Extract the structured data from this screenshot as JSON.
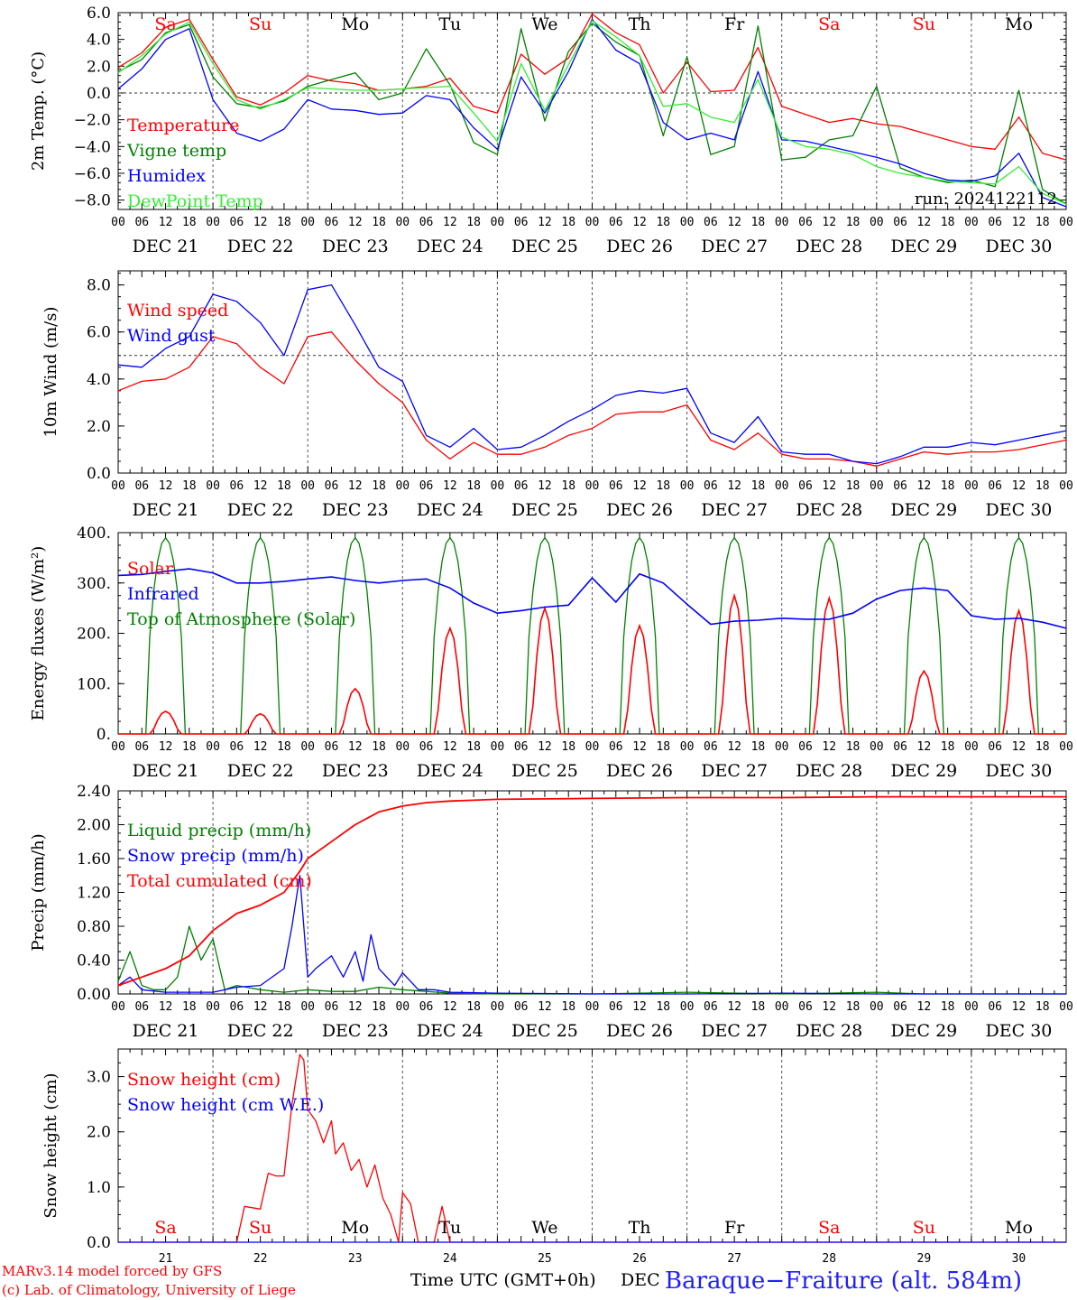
{
  "chart_data": [
    {
      "type": "line",
      "ylabel": "2m Temp. (°C)",
      "ylim": [
        -8.7,
        6.0
      ],
      "yticks": [
        "6.0",
        "4.0",
        "2.0",
        "0.0",
        "−2.0",
        "−4.0",
        "−6.0",
        "−8.0"
      ],
      "ytick_values": [
        6,
        4,
        2,
        0,
        -2,
        -4,
        -6,
        -8
      ],
      "x_unit": "hours since DEC 21 00 UTC",
      "xlim": [
        0,
        240
      ],
      "run_label": "run: 2024122112",
      "dashed_reference_y": 0,
      "legend": "upper left",
      "series": [
        {
          "name": "Temperature",
          "color": "#ff0000",
          "x": [
            0,
            6,
            12,
            18,
            24,
            30,
            36,
            42,
            48,
            54,
            60,
            66,
            72,
            78,
            84,
            90,
            96,
            102,
            108,
            114,
            120,
            126,
            132,
            138,
            144,
            150,
            156,
            162,
            168,
            174,
            180,
            186,
            192,
            198,
            204,
            210,
            216,
            222,
            228,
            234,
            240
          ],
          "y": [
            1.9,
            3.0,
            4.9,
            5.5,
            2.5,
            -0.3,
            -0.9,
            0.0,
            1.3,
            0.9,
            0.7,
            0.2,
            0.3,
            0.5,
            1.1,
            -1.0,
            -1.5,
            2.9,
            1.4,
            2.6,
            5.9,
            4.5,
            3.6,
            0.0,
            2.3,
            0.1,
            0.2,
            3.4,
            -1.0,
            -1.6,
            -2.2,
            -1.9,
            -2.3,
            -2.5,
            -3.0,
            -3.5,
            -4.0,
            -4.2,
            -1.8,
            -4.5,
            -5.0
          ]
        },
        {
          "name": "Vigne temp",
          "color": "#008000",
          "x": [
            0,
            6,
            12,
            18,
            24,
            30,
            36,
            42,
            48,
            54,
            60,
            66,
            72,
            78,
            84,
            90,
            96,
            102,
            108,
            114,
            120,
            126,
            132,
            138,
            144,
            150,
            156,
            162,
            168,
            174,
            180,
            186,
            192,
            198,
            204,
            210,
            216,
            222,
            228,
            234,
            240
          ],
          "y": [
            1.6,
            2.5,
            4.5,
            5.1,
            1.2,
            -0.8,
            -1.1,
            -0.6,
            0.5,
            1.0,
            1.5,
            -0.5,
            0.0,
            3.3,
            0.6,
            -3.7,
            -4.6,
            4.8,
            -2.1,
            3.1,
            5.2,
            3.8,
            2.8,
            -3.2,
            2.7,
            -4.6,
            -4.0,
            5.0,
            -5.0,
            -4.8,
            -3.5,
            -3.2,
            0.5,
            -5.6,
            -6.3,
            -6.7,
            -6.5,
            -7.0,
            0.2,
            -7.2,
            -8.3
          ]
        },
        {
          "name": "Humidex",
          "color": "#0000ff",
          "x": [
            0,
            6,
            12,
            18,
            24,
            30,
            36,
            42,
            48,
            54,
            60,
            66,
            72,
            78,
            84,
            90,
            96,
            102,
            108,
            114,
            120,
            126,
            132,
            138,
            144,
            150,
            156,
            162,
            168,
            174,
            180,
            186,
            192,
            198,
            204,
            210,
            216,
            222,
            228,
            234,
            240
          ],
          "y": [
            0.3,
            1.8,
            4.0,
            4.8,
            -0.5,
            -3.0,
            -3.6,
            -2.7,
            -0.5,
            -1.2,
            -1.3,
            -1.6,
            -1.5,
            -0.2,
            -0.5,
            -2.6,
            -4.2,
            1.2,
            -1.5,
            1.6,
            5.5,
            3.2,
            2.2,
            -2.2,
            -3.5,
            -3.0,
            -3.5,
            1.6,
            -3.5,
            -3.6,
            -4.0,
            -4.4,
            -4.8,
            -5.3,
            -6.0,
            -6.5,
            -6.6,
            -6.2,
            -4.5,
            -7.8,
            -8.5
          ]
        },
        {
          "name": "DewPoint Temp",
          "color": "#33ee33",
          "x": [
            0,
            6,
            12,
            18,
            24,
            30,
            36,
            42,
            48,
            54,
            60,
            66,
            72,
            78,
            84,
            90,
            96,
            102,
            108,
            114,
            120,
            126,
            132,
            138,
            144,
            150,
            156,
            162,
            168,
            174,
            180,
            186,
            192,
            198,
            204,
            210,
            216,
            222,
            228,
            234,
            240
          ],
          "y": [
            1.5,
            2.8,
            4.4,
            5.3,
            2.2,
            -0.5,
            -1.2,
            -0.5,
            0.4,
            0.3,
            0.2,
            0.2,
            0.3,
            0.4,
            0.5,
            -1.5,
            -3.6,
            2.2,
            -1.3,
            2.1,
            5.4,
            4.2,
            2.8,
            -1.0,
            -0.8,
            -1.8,
            -2.2,
            1.0,
            -3.3,
            -4.0,
            -4.2,
            -4.6,
            -5.5,
            -6.0,
            -6.3,
            -6.6,
            -6.7,
            -6.8,
            -5.5,
            -7.5,
            -8.3
          ]
        }
      ]
    },
    {
      "type": "line",
      "ylabel": "10m Wind (m/s)",
      "ylim": [
        0,
        8.6
      ],
      "yticks": [
        "8.0",
        "6.0",
        "4.0",
        "2.0",
        "0.0"
      ],
      "ytick_values": [
        8,
        6,
        4,
        2,
        0
      ],
      "xlim": [
        0,
        240
      ],
      "dashed_reference_y": 5.0,
      "legend": "upper left",
      "series": [
        {
          "name": "Wind speed",
          "color": "#ff0000",
          "x": [
            0,
            6,
            12,
            18,
            24,
            30,
            36,
            42,
            48,
            54,
            60,
            66,
            72,
            78,
            84,
            90,
            96,
            102,
            108,
            114,
            120,
            126,
            132,
            138,
            144,
            150,
            156,
            162,
            168,
            174,
            180,
            186,
            192,
            198,
            204,
            210,
            216,
            222,
            228,
            234,
            240
          ],
          "y": [
            3.5,
            3.9,
            4.0,
            4.5,
            5.8,
            5.5,
            4.5,
            3.8,
            5.8,
            6.0,
            4.8,
            3.8,
            3.0,
            1.4,
            0.6,
            1.3,
            0.8,
            0.8,
            1.1,
            1.6,
            1.9,
            2.5,
            2.6,
            2.6,
            2.9,
            1.4,
            1.0,
            1.7,
            0.8,
            0.6,
            0.6,
            0.5,
            0.3,
            0.6,
            0.9,
            0.8,
            0.9,
            0.9,
            1.0,
            1.2,
            1.4
          ]
        },
        {
          "name": "Wind gust",
          "color": "#0000ff",
          "x": [
            0,
            6,
            12,
            18,
            24,
            30,
            36,
            42,
            48,
            54,
            60,
            66,
            72,
            78,
            84,
            90,
            96,
            102,
            108,
            114,
            120,
            126,
            132,
            138,
            144,
            150,
            156,
            162,
            168,
            174,
            180,
            186,
            192,
            198,
            204,
            210,
            216,
            222,
            228,
            234,
            240
          ],
          "y": [
            4.6,
            4.5,
            5.3,
            5.8,
            7.6,
            7.3,
            6.4,
            5.0,
            7.8,
            8.0,
            6.3,
            4.5,
            3.9,
            1.6,
            1.1,
            1.9,
            1.0,
            1.1,
            1.6,
            2.2,
            2.7,
            3.3,
            3.5,
            3.4,
            3.6,
            1.7,
            1.3,
            2.4,
            0.9,
            0.8,
            0.8,
            0.5,
            0.4,
            0.7,
            1.1,
            1.1,
            1.3,
            1.2,
            1.4,
            1.6,
            1.8
          ]
        }
      ]
    },
    {
      "type": "line",
      "ylabel": "Energy fluxes (W/m²)",
      "ylim": [
        0,
        400
      ],
      "yticks": [
        "400.",
        "300.",
        "200.",
        "100.",
        "0."
      ],
      "ytick_values": [
        400,
        300,
        200,
        100,
        0
      ],
      "xlim": [
        0,
        240
      ],
      "legend": "upper left",
      "solar_peaks_by_day": [
        45,
        40,
        90,
        210,
        250,
        215,
        275,
        270,
        125,
        245
      ],
      "toa_peak": 390,
      "infrared": {
        "x": [
          0,
          6,
          12,
          18,
          24,
          30,
          36,
          42,
          48,
          54,
          60,
          66,
          72,
          78,
          84,
          90,
          96,
          102,
          108,
          114,
          120,
          126,
          132,
          138,
          144,
          150,
          156,
          162,
          168,
          174,
          180,
          186,
          192,
          198,
          204,
          210,
          216,
          222,
          228,
          234,
          240
        ],
        "y": [
          315,
          317,
          323,
          328,
          320,
          300,
          300,
          303,
          308,
          312,
          305,
          300,
          305,
          308,
          290,
          260,
          240,
          245,
          252,
          256,
          310,
          262,
          318,
          300,
          258,
          218,
          224,
          226,
          230,
          228,
          228,
          240,
          268,
          285,
          290,
          285,
          235,
          228,
          230,
          222,
          210
        ]
      },
      "series_names": [
        "Solar",
        "Infrared",
        "Top of Atmosphere (Solar)"
      ],
      "series_colors": [
        "#ff0000",
        "#0000ff",
        "#008000"
      ]
    },
    {
      "type": "line",
      "ylabel": "Precip (mm/h)",
      "ylim": [
        0,
        2.4
      ],
      "yticks": [
        "2.40",
        "2.00",
        "1.60",
        "1.20",
        "0.80",
        "0.40",
        "0.00"
      ],
      "ytick_values": [
        2.4,
        2.0,
        1.6,
        1.2,
        0.8,
        0.4,
        0.0
      ],
      "xlim": [
        0,
        240
      ],
      "legend": "upper left",
      "series": [
        {
          "name": "Liquid precip (mm/h)",
          "color": "#008000",
          "x": [
            0,
            3,
            6,
            9,
            12,
            15,
            18,
            21,
            24,
            27,
            30,
            36,
            42,
            48,
            54,
            60,
            66,
            72,
            78,
            84,
            96,
            108,
            120,
            132,
            144,
            168,
            180,
            192,
            204,
            216,
            240
          ],
          "y": [
            0.15,
            0.5,
            0.1,
            0.05,
            0.05,
            0.2,
            0.8,
            0.4,
            0.65,
            0.05,
            0.1,
            0.05,
            0.02,
            0.05,
            0.03,
            0.03,
            0.08,
            0.05,
            0.03,
            0.01,
            0.0,
            0.0,
            0.0,
            0.01,
            0.02,
            0.0,
            0.01,
            0.02,
            0.0,
            0.0,
            0.0
          ]
        },
        {
          "name": "Snow precip (mm/h)",
          "color": "#0000ff",
          "x": [
            0,
            3,
            6,
            12,
            18,
            24,
            30,
            36,
            42,
            44,
            46,
            48,
            50,
            54,
            57,
            60,
            62,
            64,
            66,
            70,
            72,
            74,
            76,
            80,
            84,
            96,
            120,
            144,
            168,
            192,
            240
          ],
          "y": [
            0.1,
            0.2,
            0.05,
            0.02,
            0.02,
            0.02,
            0.08,
            0.1,
            0.3,
            0.8,
            1.4,
            0.2,
            0.3,
            0.45,
            0.2,
            0.5,
            0.15,
            0.7,
            0.3,
            0.1,
            0.25,
            0.15,
            0.05,
            0.05,
            0.02,
            0.01,
            0.0,
            0.0,
            0.01,
            0.0,
            0.0
          ]
        },
        {
          "name": "Total cumulated (cm)",
          "color": "#ff0000",
          "x": [
            0,
            6,
            12,
            18,
            24,
            30,
            36,
            42,
            46,
            48,
            54,
            60,
            66,
            72,
            78,
            84,
            96,
            120,
            144,
            168,
            192,
            216,
            240
          ],
          "y": [
            0.1,
            0.2,
            0.3,
            0.45,
            0.75,
            0.95,
            1.05,
            1.2,
            1.45,
            1.6,
            1.8,
            2.0,
            2.15,
            2.22,
            2.26,
            2.28,
            2.3,
            2.31,
            2.32,
            2.32,
            2.33,
            2.33,
            2.33
          ]
        }
      ]
    },
    {
      "type": "line",
      "ylabel": "Snow height (cm)",
      "ylim": [
        0,
        3.5
      ],
      "yticks": [
        "3.0",
        "2.0",
        "1.0",
        "0.0"
      ],
      "ytick_values": [
        3,
        2,
        1,
        0
      ],
      "xlim": [
        0,
        240
      ],
      "legend": "upper left",
      "series": [
        {
          "name": "Snow height (cm)",
          "color": "#ff0000",
          "x": [
            0,
            30,
            32,
            36,
            38,
            40,
            42,
            44,
            46,
            47,
            48,
            50,
            52,
            54,
            55,
            57,
            59,
            61,
            63,
            65,
            67,
            69,
            71,
            72,
            74,
            76,
            78,
            80,
            82,
            84,
            86,
            88,
            90,
            240
          ],
          "y": [
            0,
            0,
            0.65,
            0.6,
            1.25,
            1.2,
            1.2,
            2.5,
            3.4,
            3.3,
            2.4,
            2.2,
            1.8,
            2.2,
            1.6,
            1.8,
            1.3,
            1.5,
            1.0,
            1.4,
            0.8,
            0.5,
            0.0,
            0.9,
            0.7,
            0.0,
            0.0,
            0.0,
            0.65,
            0.0,
            0.0,
            0.0,
            0.0,
            0.0
          ]
        },
        {
          "name": "Snow height (cm W.E.)",
          "color": "#0000ff",
          "x": [
            0,
            240
          ],
          "y": [
            0,
            0
          ]
        }
      ]
    }
  ],
  "days": {
    "abbrev": [
      "Sa",
      "Su",
      "Mo",
      "Tu",
      "We",
      "Th",
      "Fr",
      "Sa",
      "Su",
      "Mo"
    ],
    "weekend_color": "#ff0000",
    "weekday_color": "#000000",
    "weekend_flags": [
      true,
      true,
      false,
      false,
      false,
      false,
      false,
      true,
      true,
      false
    ],
    "dates": [
      "DEC 21",
      "DEC 22",
      "DEC 23",
      "DEC 24",
      "DEC 25",
      "DEC 26",
      "DEC 27",
      "DEC 28",
      "DEC 29",
      "DEC 30"
    ],
    "day_numbers": [
      "21",
      "22",
      "23",
      "24",
      "25",
      "26",
      "27",
      "28",
      "29",
      "30"
    ],
    "hour_ticks": [
      "00",
      "06",
      "12",
      "18"
    ],
    "final_hour_tick": "00"
  },
  "footer": {
    "model": "MARv3.14 model forced by GFS",
    "credit": "(c) Lab. of Climatology, University of Liege",
    "axis_title": "Time UTC (GMT+0h)",
    "month": "DEC",
    "station": "Baraque−Fraiture (alt. 584m)"
  }
}
